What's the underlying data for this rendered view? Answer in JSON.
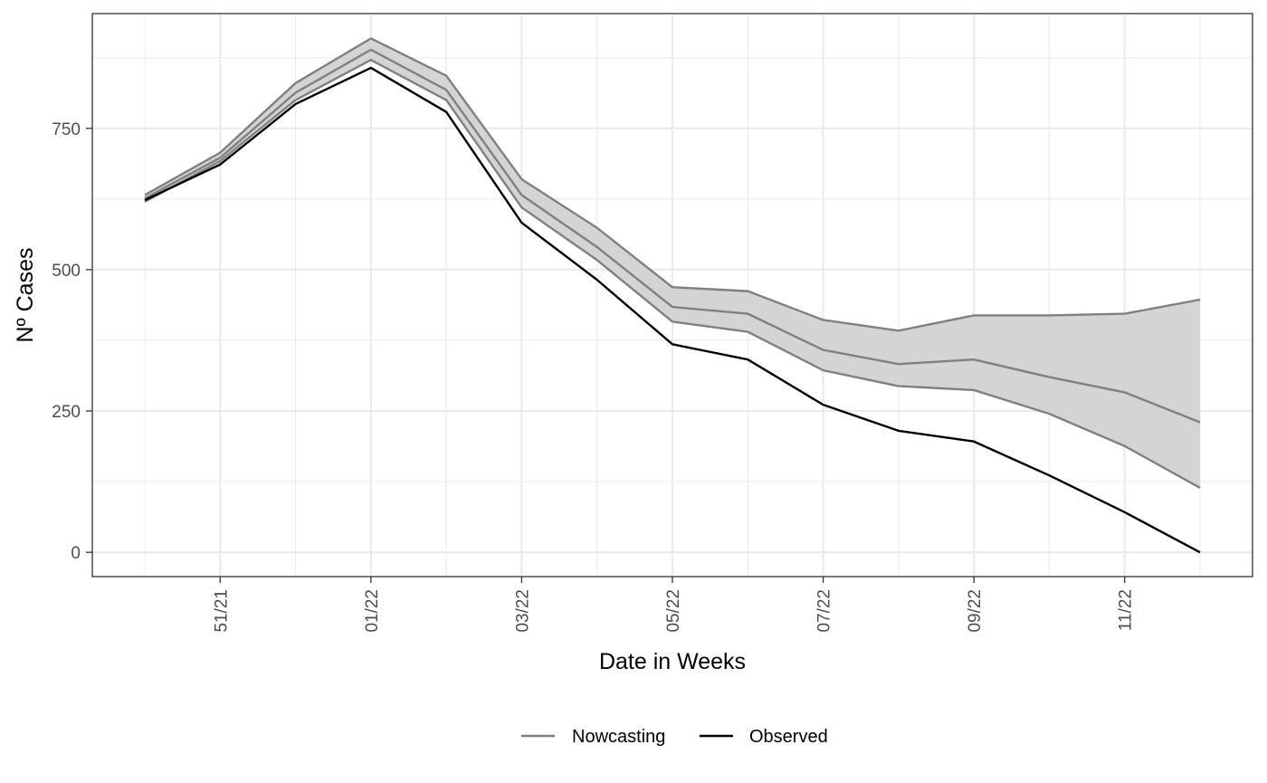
{
  "chart_data": {
    "type": "line",
    "title": "",
    "xlabel": "Date in Weeks",
    "ylabel": "Nº Cases",
    "x": [
      "50/21",
      "51/21",
      "52/21",
      "01/22",
      "02/22",
      "03/22",
      "04/22",
      "05/22",
      "06/22",
      "07/22",
      "08/22",
      "09/22",
      "10/22",
      "11/22",
      "12/22"
    ],
    "x_tick_labels": [
      "51/21",
      "01/22",
      "03/22",
      "05/22",
      "07/22",
      "09/22",
      "11/22"
    ],
    "y_ticks": [
      0,
      250,
      500,
      750
    ],
    "y_tick_labels": [
      "0",
      "250",
      "500",
      "750"
    ],
    "ylim": [
      -43,
      953
    ],
    "grid": true,
    "legend_position": "bottom",
    "series": [
      {
        "name": "Nowcasting",
        "color": "#808080",
        "values": [
          626,
          698,
          813,
          889,
          818,
          632,
          540,
          434,
          422,
          358,
          333,
          341,
          310,
          283,
          230
        ],
        "lower": [
          620,
          692,
          800,
          871,
          800,
          610,
          517,
          408,
          390,
          322,
          294,
          287,
          245,
          188,
          114
        ],
        "upper": [
          632,
          707,
          830,
          909,
          843,
          660,
          574,
          469,
          462,
          411,
          392,
          419,
          419,
          422,
          447
        ]
      },
      {
        "name": "Observed",
        "color": "#000000",
        "values": [
          623,
          686,
          793,
          857,
          779,
          583,
          482,
          368,
          341,
          261,
          215,
          196,
          136,
          71,
          0
        ]
      }
    ],
    "band_color": "#d4d4d4"
  },
  "legend": {
    "items": [
      {
        "label": "Nowcasting",
        "color": "#808080"
      },
      {
        "label": "Observed",
        "color": "#000000"
      }
    ]
  }
}
